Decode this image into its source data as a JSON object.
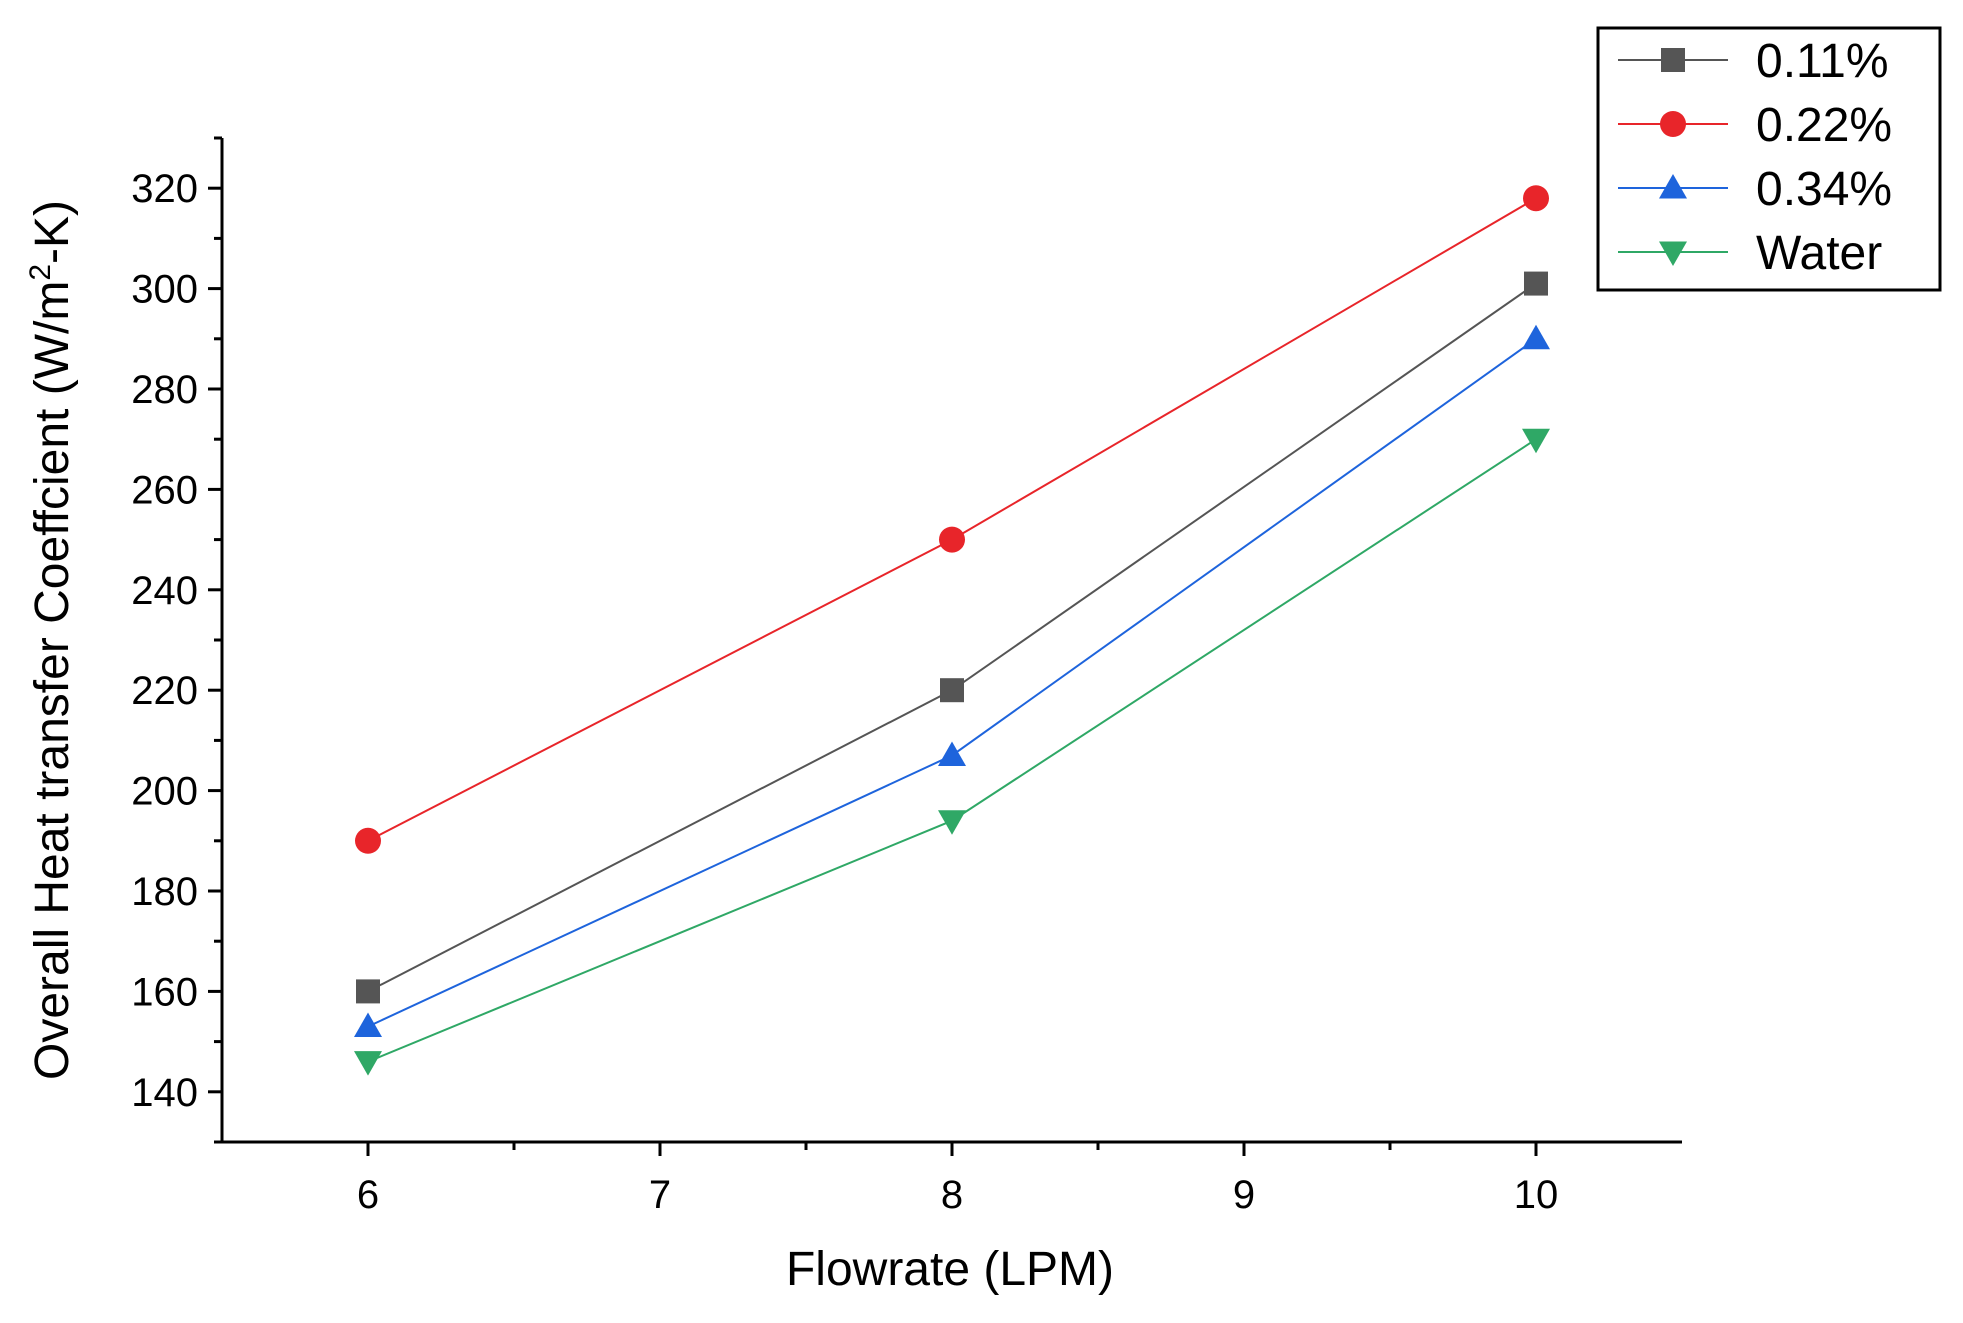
{
  "chart_data": {
    "type": "line",
    "title": "",
    "xlabel": "Flowrate (LPM)",
    "ylabel": {
      "prefix": "Overall Heat transfer Coeffcient (W/m",
      "sup": "2",
      "suffix": "-K)"
    },
    "xlim": [
      5.5,
      10.5
    ],
    "ylim": [
      130,
      330
    ],
    "xticks": [
      6,
      7,
      8,
      9,
      10
    ],
    "xticks_minor": [
      6.5,
      7.5,
      8.5,
      9.5
    ],
    "yticks": [
      140,
      160,
      180,
      200,
      220,
      240,
      260,
      280,
      300,
      320
    ],
    "yticks_minor": [
      130,
      150,
      170,
      190,
      210,
      230,
      250,
      270,
      290,
      310,
      330
    ],
    "x": [
      6,
      8,
      10
    ],
    "series": [
      {
        "name": "0.11%",
        "values": [
          160,
          220,
          301
        ],
        "color": "#555555",
        "marker": "square"
      },
      {
        "name": "0.22%",
        "values": [
          190,
          250,
          318
        ],
        "color": "#e8252a",
        "marker": "circle"
      },
      {
        "name": "0.34%",
        "values": [
          153,
          207,
          290
        ],
        "color": "#1e64dc",
        "marker": "triangle-up"
      },
      {
        "name": "Water",
        "values": [
          146,
          194,
          270
        ],
        "color": "#2fa866",
        "marker": "triangle-down"
      }
    ],
    "legend_position": "top-right",
    "grid": false
  }
}
